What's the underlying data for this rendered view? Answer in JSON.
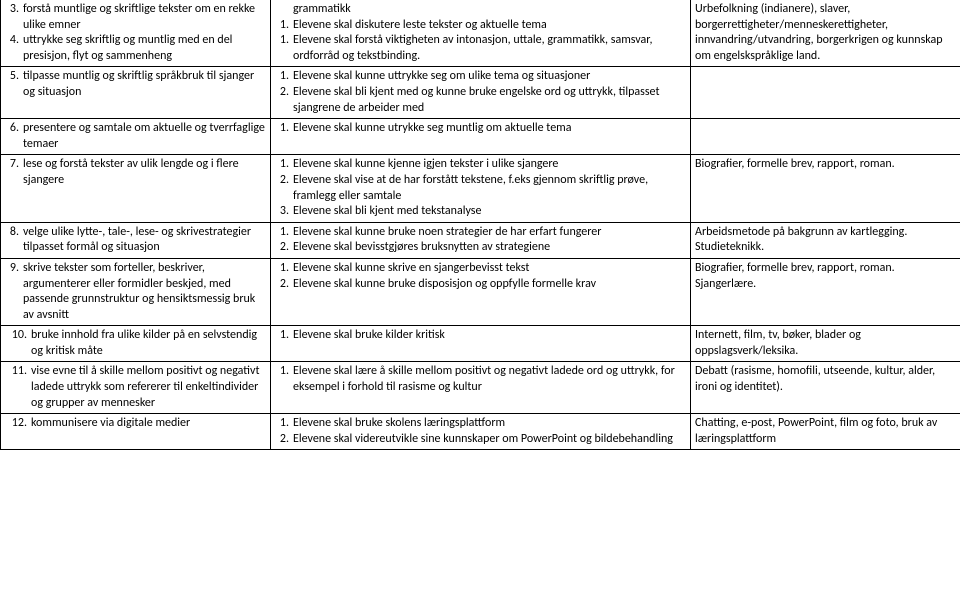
{
  "rows": [
    {
      "c1": [
        {
          "n": "3.",
          "t": "forstå muntlige og skriftlige tekster om en rekke ulike emner"
        },
        {
          "n": "4.",
          "t": "uttrykke seg skriftlig og muntlig med en del presisjon, flyt og sammenheng"
        }
      ],
      "c2pre": "grammatikk",
      "c2": [
        {
          "n": "1.",
          "t": "Elevene skal diskutere leste tekster og aktuelle tema"
        },
        {
          "n": "1.",
          "t": "Elevene skal forstå viktigheten av intonasjon, uttale, grammatikk, samsvar, ordforråd og tekstbinding."
        }
      ],
      "c3": "Urbefolkning (indianere), slaver, borgerrettigheter/menneskerettigheter, innvandring/utvandring, borgerkrigen og kunnskap om engelskspråklige land."
    },
    {
      "c1": [
        {
          "n": "5.",
          "t": "tilpasse muntlig og skriftlig språkbruk til sjanger og situasjon"
        }
      ],
      "c2": [
        {
          "n": "1.",
          "t": "Elevene skal kunne uttrykke seg om ulike tema og situasjoner"
        },
        {
          "n": "2.",
          "t": "Elevene skal bli kjent med og kunne bruke engelske ord og uttrykk, tilpasset sjangrene de arbeider med"
        }
      ],
      "c3": ""
    },
    {
      "c1": [
        {
          "n": "6.",
          "t": "presentere og samtale om aktuelle og tverrfaglige temaer"
        }
      ],
      "c2": [
        {
          "n": "1.",
          "t": "Elevene skal kunne utrykke seg muntlig om aktuelle tema"
        }
      ],
      "c3": ""
    },
    {
      "c1": [
        {
          "n": "7.",
          "t": "lese og forstå tekster av ulik lengde og i flere sjangere"
        }
      ],
      "c2": [
        {
          "n": "1.",
          "t": "Elevene skal kunne kjenne igjen tekster i ulike sjangere"
        },
        {
          "n": "2.",
          "t": "Elevene skal vise at de har forstått tekstene, f.eks gjennom skriftlig prøve, framlegg eller samtale"
        },
        {
          "n": "3.",
          "t": "Elevene skal bli kjent med tekstanalyse"
        }
      ],
      "c3": "Biografier, formelle brev, rapport, roman."
    },
    {
      "c1": [
        {
          "n": "8.",
          "t": "velge ulike lytte-, tale-, lese- og skrivestrategier tilpasset formål og situasjon"
        }
      ],
      "c2": [
        {
          "n": "1.",
          "t": "Elevene skal kunne bruke noen strategier de har erfart fungerer"
        },
        {
          "n": "2.",
          "t": "Elevene skal bevisstgjøres bruksnytten av strategiene"
        }
      ],
      "c3": "Arbeidsmetode på bakgrunn av kartlegging. Studieteknikk."
    },
    {
      "c1": [
        {
          "n": "9.",
          "t": "skrive tekster som forteller, beskriver, argumenterer eller formidler beskjed, med passende grunnstruktur og hensiktsmessig bruk av avsnitt"
        }
      ],
      "c2": [
        {
          "n": "1.",
          "t": "Elevene skal kunne skrive en sjangerbevisst tekst"
        },
        {
          "n": "2.",
          "t": "Elevene skal kunne bruke disposisjon og oppfylle formelle krav"
        }
      ],
      "c3": "Biografier, formelle brev, rapport, roman.\nSjangerlære."
    },
    {
      "c1": [
        {
          "n": "10.",
          "t": "bruke innhold fra ulike kilder på en selvstendig og kritisk måte"
        }
      ],
      "c2": [
        {
          "n": "1.",
          "t": " Elevene skal bruke kilder kritisk"
        }
      ],
      "c3": "Internett, film, tv, bøker, blader og oppslagsverk/leksika."
    },
    {
      "c1": [
        {
          "n": "11.",
          "t": "vise evne til å skille mellom positivt og negativt ladede uttrykk som refererer til enkeltindivider og grupper av mennesker"
        }
      ],
      "c2": [
        {
          "n": "1.",
          "t": "Elevene skal lære å skille mellom positivt og negativt ladede ord og uttrykk, for eksempel i forhold til rasisme og kultur"
        }
      ],
      "c3": "Debatt (rasisme, homofili, utseende, kultur, alder, ironi og identitet)."
    },
    {
      "c1": [
        {
          "n": "12.",
          "t": "kommunisere via digitale medier"
        }
      ],
      "c2": [
        {
          "n": "1.",
          "t": "Elevene skal bruke skolens læringsplattform"
        },
        {
          "n": "2.",
          "t": "Elevene skal videreutvikle sine kunnskaper om PowerPoint og bildebehandling"
        }
      ],
      "c3": "Chatting, e-post, PowerPoint, film og foto, bruk av læringsplattform"
    }
  ]
}
